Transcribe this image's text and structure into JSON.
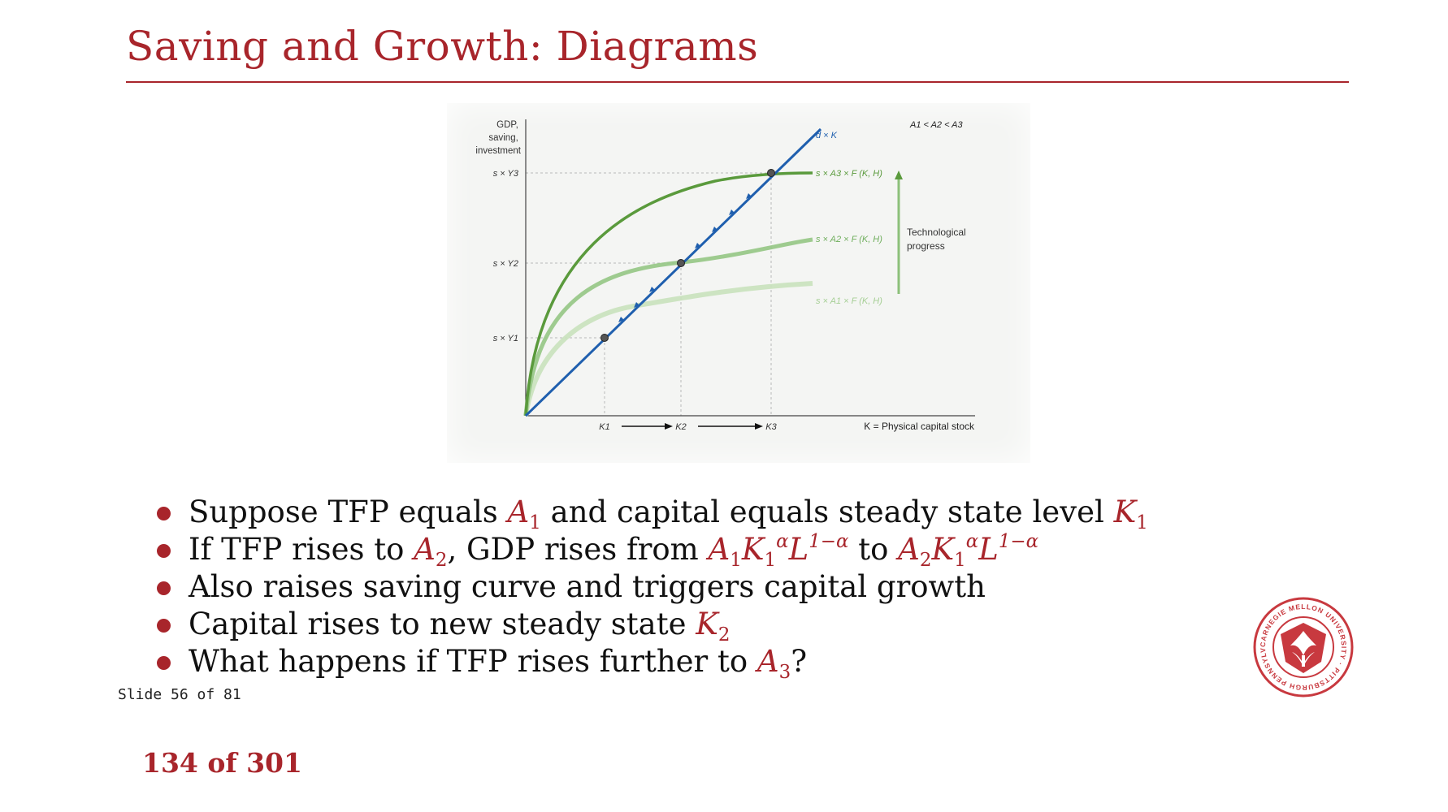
{
  "slide": {
    "title": "Saving and Growth: Diagrams",
    "slide_counter": "Slide 56 of 81",
    "page_counter": "134 of 301"
  },
  "figure": {
    "y_axis_title": [
      "GDP,",
      "saving,",
      "investment"
    ],
    "x_axis_title": "K = Physical capital stock",
    "y_ticks": [
      "s × Y3",
      "s × Y2",
      "s × Y1"
    ],
    "x_ticks": [
      "K1",
      "K2",
      "K3"
    ],
    "depreciation_label": "d × K",
    "curve_labels": [
      "s × A3 × F (K, H)",
      "s × A2 × F (K, H)",
      "s × A1 × F (K, H)"
    ],
    "ordering_note": "A1 < A2 < A3",
    "tech_progress_label": [
      "Technological",
      "progress"
    ],
    "colors": {
      "dark_green": "#5a9a3c",
      "mid_green": "#8cc07a",
      "light_green": "#bcdcac",
      "blue": "#1f5fae"
    }
  },
  "bullets": [
    {
      "text": "Suppose TFP equals",
      "math1": "A",
      "sub1": "1",
      "rest": " and capital equals steady state level ",
      "math2": "K",
      "sub2": "1"
    },
    {
      "text": "If TFP rises to ",
      "math": "A",
      "sub": "2",
      "mid": ", GDP rises from ",
      "to": " to "
    },
    {
      "text": "Also raises saving curve and triggers capital growth"
    },
    {
      "text": "Capital rises to new steady state ",
      "math": "K",
      "sub": "2"
    },
    {
      "text": "What happens if TFP rises further to ",
      "math": "A",
      "sub": "3",
      "end": "?"
    }
  ],
  "logo": {
    "ring_text": "CARNEGIE MELLON UNIVERSITY · PITTSBURGH PENNSYLVANIA 1900"
  }
}
